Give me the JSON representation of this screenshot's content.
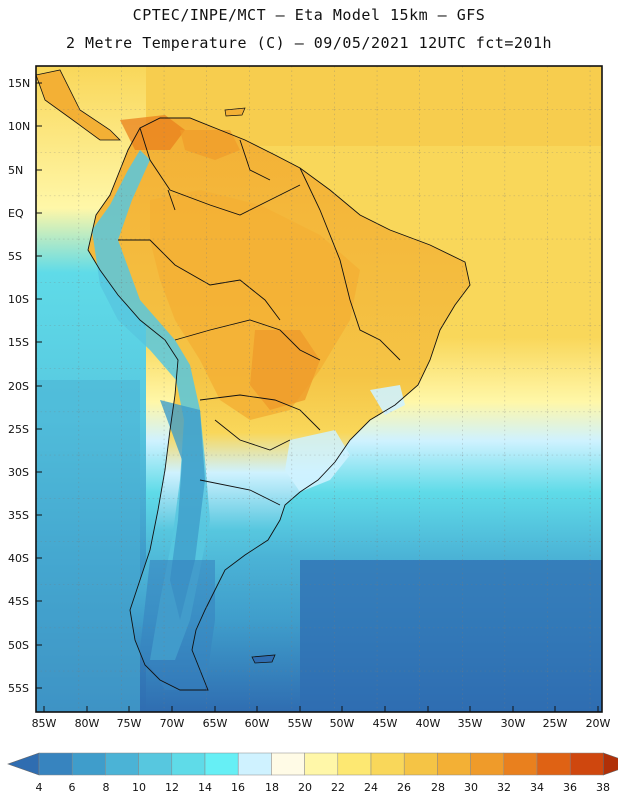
{
  "header": {
    "line1": "CPTEC/INPE/MCT –  Eta Model 15km – GFS",
    "line2": "2 Metre Temperature (C) – 09/05/2021 12UTC fct=201h"
  },
  "lat_labels": [
    "15N",
    "10N",
    "5N",
    "EQ",
    "5S",
    "10S",
    "15S",
    "20S",
    "25S",
    "30S",
    "35S",
    "40S",
    "45S",
    "50S",
    "55S"
  ],
  "lon_labels": [
    "85W",
    "80W",
    "75W",
    "70W",
    "65W",
    "60W",
    "55W",
    "50W",
    "45W",
    "40W",
    "35W",
    "30W",
    "25W",
    "20W"
  ],
  "colorbar": {
    "labels": [
      "4",
      "6",
      "8",
      "10",
      "12",
      "14",
      "16",
      "18",
      "20",
      "22",
      "24",
      "26",
      "28",
      "30",
      "32",
      "34",
      "36",
      "38"
    ],
    "colors": [
      "#2f6db1",
      "#3784bf",
      "#3f9dcb",
      "#4bb3d6",
      "#57c7df",
      "#5fdbe8",
      "#66eff5",
      "#cff2ff",
      "#fffbe6",
      "#fff7a8",
      "#fde872",
      "#f9d75a",
      "#f5c445",
      "#f3b035",
      "#ef9b2a",
      "#e9801e",
      "#df6214",
      "#cf470e",
      "#b03008"
    ]
  },
  "map_regions": {
    "continent": "South America",
    "ocean": "Atlantic / Pacific"
  }
}
